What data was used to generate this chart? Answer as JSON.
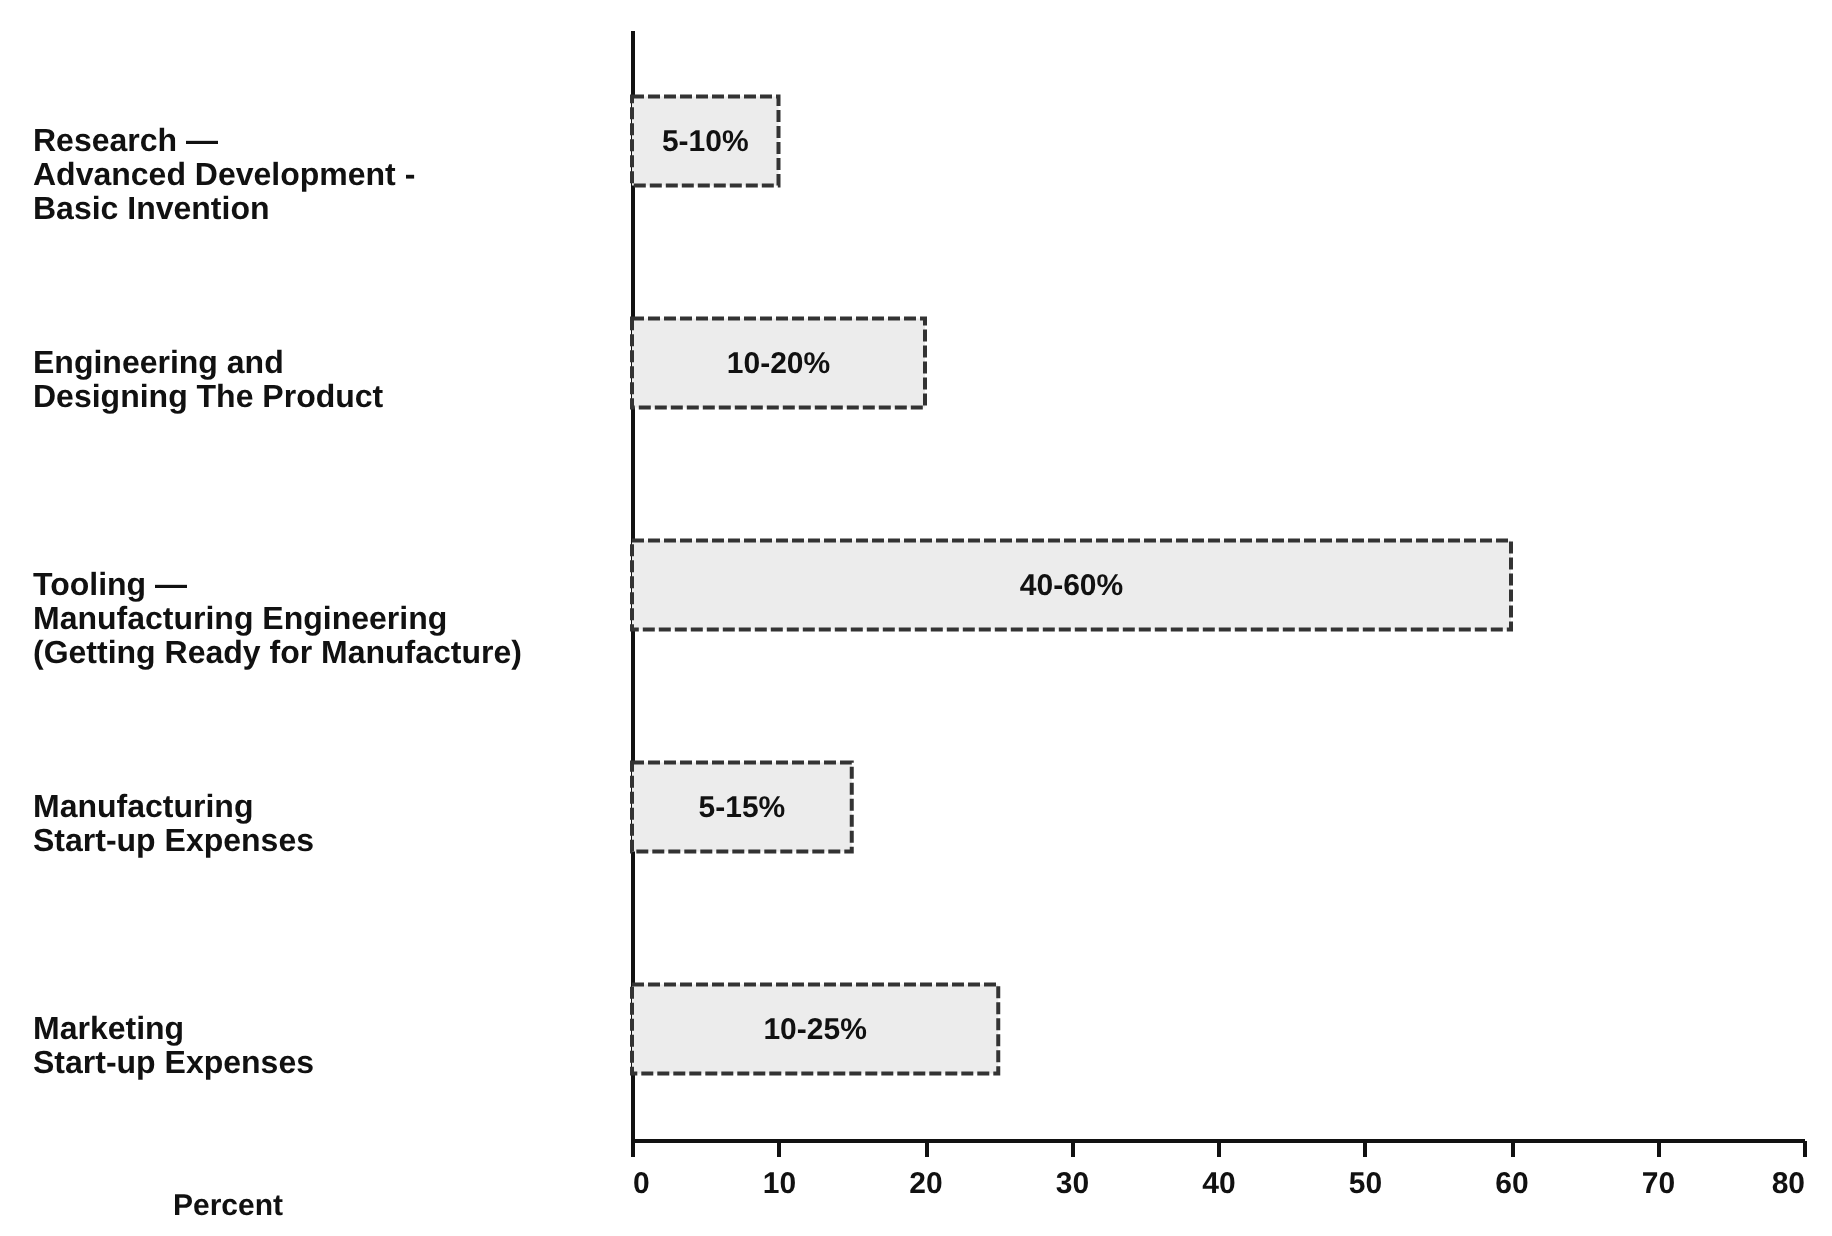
{
  "chart_data": {
    "type": "bar",
    "orientation": "horizontal",
    "xlabel": "Percent",
    "categories": [
      "Research —\nAdvanced Development -\nBasic Invention",
      "Engineering and\nDesigning The Product",
      "Tooling —\nManufacturing Engineering\n(Getting Ready for Manufacture)",
      "Manufacturing\nStart-up Expenses",
      "Marketing\nStart-up Expenses"
    ],
    "values": [
      10,
      20,
      60,
      15,
      25
    ],
    "annotations": [
      "5-10%",
      "10-20%",
      "40-60%",
      "5-15%",
      "10-25%"
    ],
    "color": "#ececec",
    "xlim": [
      0,
      80
    ],
    "xticks": [
      0,
      10,
      20,
      30,
      40,
      50,
      60,
      70,
      80
    ],
    "grid": false
  }
}
